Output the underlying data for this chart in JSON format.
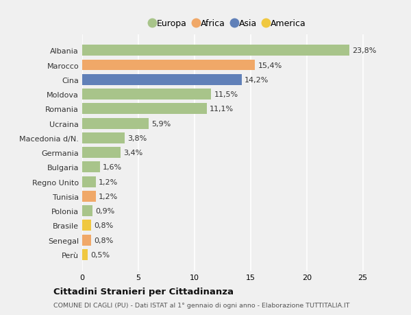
{
  "categories": [
    "Albania",
    "Marocco",
    "Cina",
    "Moldova",
    "Romania",
    "Ucraina",
    "Macedonia d/N.",
    "Germania",
    "Bulgaria",
    "Regno Unito",
    "Tunisia",
    "Polonia",
    "Brasile",
    "Senegal",
    "Perù"
  ],
  "values": [
    23.8,
    15.4,
    14.2,
    11.5,
    11.1,
    5.9,
    3.8,
    3.4,
    1.6,
    1.2,
    1.2,
    0.9,
    0.8,
    0.8,
    0.5
  ],
  "labels": [
    "23,8%",
    "15,4%",
    "14,2%",
    "11,5%",
    "11,1%",
    "5,9%",
    "3,8%",
    "3,4%",
    "1,6%",
    "1,2%",
    "1,2%",
    "0,9%",
    "0,8%",
    "0,8%",
    "0,5%"
  ],
  "continents": [
    "Europa",
    "Africa",
    "Asia",
    "Europa",
    "Europa",
    "Europa",
    "Europa",
    "Europa",
    "Europa",
    "Europa",
    "Africa",
    "Europa",
    "America",
    "Africa",
    "America"
  ],
  "continent_colors": {
    "Europa": "#a8c48a",
    "Africa": "#f0a868",
    "Asia": "#6080b8",
    "America": "#f0c840"
  },
  "legend_order": [
    "Europa",
    "Africa",
    "Asia",
    "America"
  ],
  "bg_color": "#f0f0f0",
  "plot_bg_color": "#f0f0f0",
  "grid_color": "#ffffff",
  "title1": "Cittadini Stranieri per Cittadinanza",
  "title2": "COMUNE DI CAGLI (PU) - Dati ISTAT al 1° gennaio di ogni anno - Elaborazione TUTTITALIA.IT",
  "xlim": [
    0,
    26
  ],
  "xticks": [
    0,
    5,
    10,
    15,
    20,
    25
  ],
  "bar_height": 0.75,
  "label_fontsize": 8,
  "tick_fontsize": 8,
  "legend_fontsize": 9
}
